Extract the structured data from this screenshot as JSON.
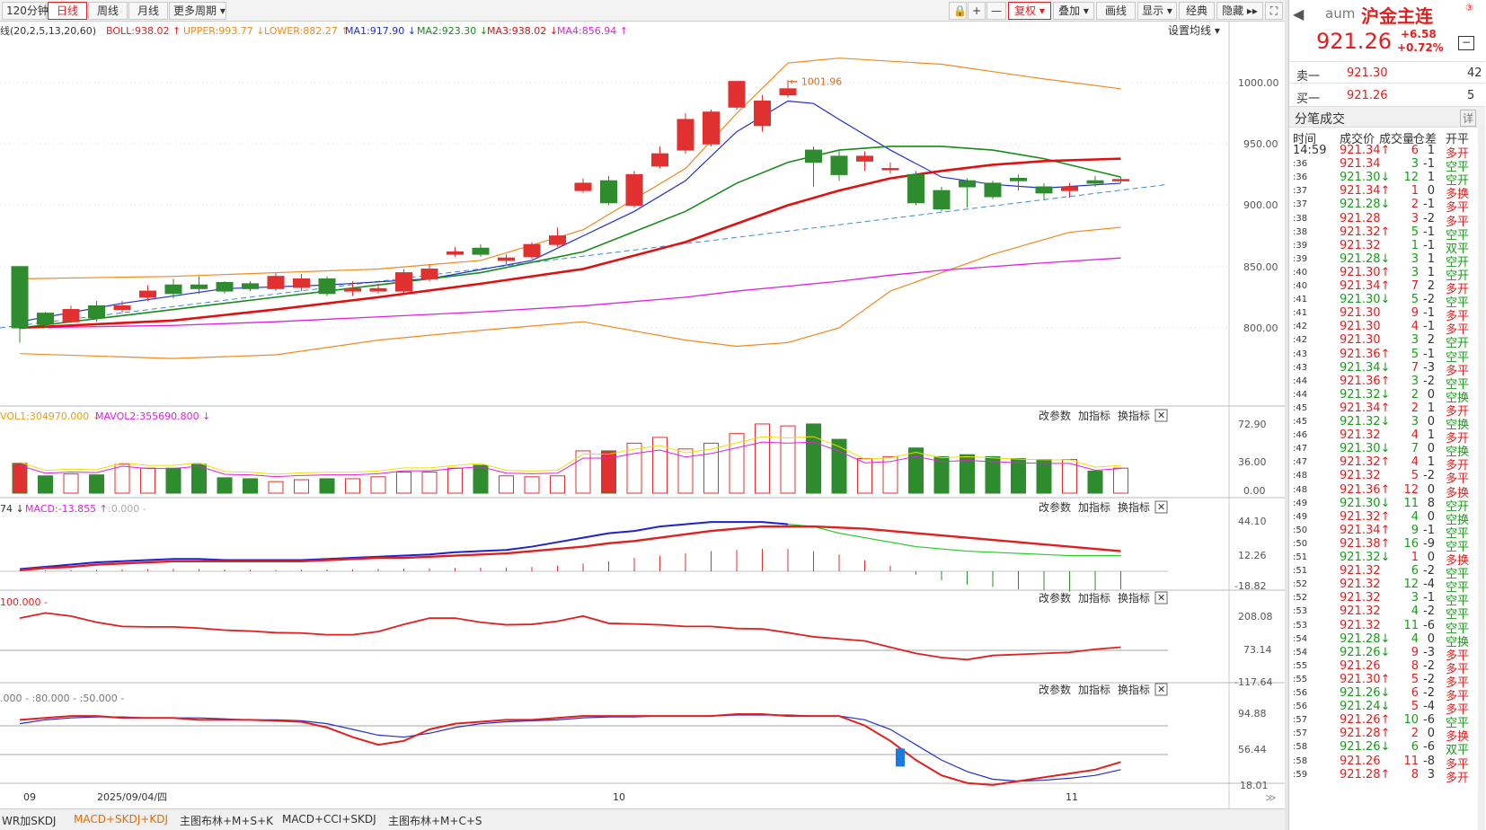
{
  "toolbar": {
    "periods": [
      "120分钟",
      "日线",
      "周线",
      "月线",
      "更多周期 ▾"
    ],
    "active_period": "日线",
    "right_buttons": [
      "🔒",
      "+",
      "—",
      "复权 ▾",
      "叠加 ▾",
      "画线",
      "显示 ▾",
      "经典",
      "隐藏 ▸▸",
      "⛶"
    ]
  },
  "legend_main": {
    "boll_params": "线(20,2,5,13,20,60)",
    "boll": "BOLL:938.02 ↑",
    "upper": "UPPER:993.77 ↓",
    "lower": "LOWER:882.27 ↑",
    "ma1": "MA1:917.90 ↓",
    "ma2": "MA2:923.30 ↓",
    "ma3": "MA3:938.02 ↓",
    "ma4": "MA4:856.94 ↑",
    "settings": "设置均线 ▾"
  },
  "main_axis": [
    "1000.00",
    "950.00",
    "900.00",
    "850.00",
    "800.00"
  ],
  "high_label": "1001.96",
  "vol_legend": {
    "vol1": "VOL1:304970.000 ↓",
    "vol2": "MAVOL2:355690.800 ↓"
  },
  "vol_axis": [
    "72.90",
    "36.00",
    "0.00"
  ],
  "macd_legend": {
    "a": "74 ↓",
    "b": "MACD:-13.855 ↑",
    "c": ":0.000 -"
  },
  "macd_axis": [
    "44.10",
    "12.26",
    "-18.82"
  ],
  "p3_legend": "100.000 -",
  "p3_axis": [
    "208.08",
    "73.14",
    "-117.64"
  ],
  "p4_legend": ".000 - :80.000 - :50.000 -",
  "p4_axis": [
    "94.88",
    "56.44",
    "18.01"
  ],
  "panel_buttons": [
    "改参数",
    "加指标",
    "换指标",
    "✕"
  ],
  "x_labels": [
    "09",
    "2025/09/04/四",
    "10",
    "11"
  ],
  "bottom_tabs": [
    "WR加SKDJ",
    "MACD+SKDJ+KDJ",
    "主图布林+M+S+K",
    "MACD+CCI+SKDJ",
    "主图布林+M+C+S"
  ],
  "active_tab": "MACD+SKDJ+KDJ",
  "quote": {
    "code": "aum",
    "name": "沪金主连",
    "price": "921.26",
    "change": "+6.58",
    "pct": "+0.72%",
    "sell_label": "卖一",
    "sell_price": "921.30",
    "sell_vol": "42",
    "buy_label": "买一",
    "buy_price": "921.26",
    "buy_vol": "5",
    "ticks_title": "分笔成交",
    "detail": "详",
    "cols": [
      "时间",
      "成交价",
      "成交量",
      "仓差",
      "开平"
    ]
  },
  "ticks": [
    [
      "14:59",
      "921.34↑",
      "6",
      "1",
      "多开"
    ],
    [
      ":36",
      "921.34",
      "3",
      "-1",
      "空平"
    ],
    [
      ":36",
      "921.30↓",
      "12",
      "1",
      "空开"
    ],
    [
      ":37",
      "921.34↑",
      "1",
      "0",
      "多换"
    ],
    [
      ":37",
      "921.28↓",
      "2",
      "-1",
      "多平"
    ],
    [
      ":38",
      "921.28",
      "3",
      "-2",
      "多平"
    ],
    [
      ":38",
      "921.32↑",
      "5",
      "-1",
      "空平"
    ],
    [
      ":39",
      "921.32",
      "1",
      "-1",
      "双平"
    ],
    [
      ":39",
      "921.28↓",
      "3",
      "1",
      "空开"
    ],
    [
      ":40",
      "921.30↑",
      "3",
      "1",
      "空开"
    ],
    [
      ":40",
      "921.34↑",
      "7",
      "2",
      "多开"
    ],
    [
      ":41",
      "921.30↓",
      "5",
      "-2",
      "空平"
    ],
    [
      ":41",
      "921.30",
      "9",
      "-1",
      "多平"
    ],
    [
      ":42",
      "921.30",
      "4",
      "-1",
      "多平"
    ],
    [
      ":42",
      "921.30",
      "3",
      "2",
      "空开"
    ],
    [
      ":43",
      "921.36↑",
      "5",
      "-1",
      "空平"
    ],
    [
      ":43",
      "921.34↓",
      "7",
      "-3",
      "多平"
    ],
    [
      ":44",
      "921.36↑",
      "3",
      "-2",
      "空平"
    ],
    [
      ":44",
      "921.32↓",
      "2",
      "0",
      "空换"
    ],
    [
      ":45",
      "921.34↑",
      "2",
      "1",
      "多开"
    ],
    [
      ":45",
      "921.32↓",
      "3",
      "0",
      "空换"
    ],
    [
      ":46",
      "921.32",
      "4",
      "1",
      "多开"
    ],
    [
      ":47",
      "921.30↓",
      "7",
      "0",
      "空换"
    ],
    [
      ":47",
      "921.32↑",
      "4",
      "1",
      "多开"
    ],
    [
      ":48",
      "921.32",
      "5",
      "-2",
      "多平"
    ],
    [
      ":48",
      "921.36↑",
      "12",
      "0",
      "多换"
    ],
    [
      ":49",
      "921.30↓",
      "11",
      "8",
      "空开"
    ],
    [
      ":49",
      "921.32↑",
      "4",
      "0",
      "空换"
    ],
    [
      ":50",
      "921.34↑",
      "9",
      "-1",
      "空平"
    ],
    [
      ":50",
      "921.38↑",
      "16",
      "-9",
      "空平"
    ],
    [
      ":51",
      "921.32↓",
      "1",
      "0",
      "多换"
    ],
    [
      ":51",
      "921.32",
      "6",
      "-2",
      "空平"
    ],
    [
      ":52",
      "921.32",
      "12",
      "-4",
      "空平"
    ],
    [
      ":52",
      "921.32",
      "3",
      "-1",
      "空平"
    ],
    [
      ":53",
      "921.32",
      "4",
      "-2",
      "空平"
    ],
    [
      ":53",
      "921.32",
      "11",
      "-6",
      "空平"
    ],
    [
      ":54",
      "921.28↓",
      "4",
      "0",
      "空换"
    ],
    [
      ":54",
      "921.26↓",
      "9",
      "-3",
      "多平"
    ],
    [
      ":55",
      "921.26",
      "8",
      "-2",
      "多平"
    ],
    [
      ":55",
      "921.30↑",
      "5",
      "-2",
      "多平"
    ],
    [
      ":56",
      "921.26↓",
      "6",
      "-2",
      "多平"
    ],
    [
      ":56",
      "921.24↓",
      "5",
      "-4",
      "多平"
    ],
    [
      ":57",
      "921.26↑",
      "10",
      "-6",
      "空平"
    ],
    [
      ":57",
      "921.28↑",
      "2",
      "0",
      "多换"
    ],
    [
      ":58",
      "921.26↓",
      "6",
      "-6",
      "双平"
    ],
    [
      ":58",
      "921.26",
      "11",
      "-8",
      "多平"
    ],
    [
      ":59",
      "921.28↑",
      "8",
      "3",
      "多开"
    ]
  ],
  "colors": {
    "up": "#e03030",
    "down": "#2e8b2e",
    "upper": "#f08a1e",
    "ma1": "#2030d0",
    "ma2": "#1a8a1a",
    "ma3": "#e01010",
    "ma4": "#e020e0",
    "dash": "#3a8ad8"
  }
}
